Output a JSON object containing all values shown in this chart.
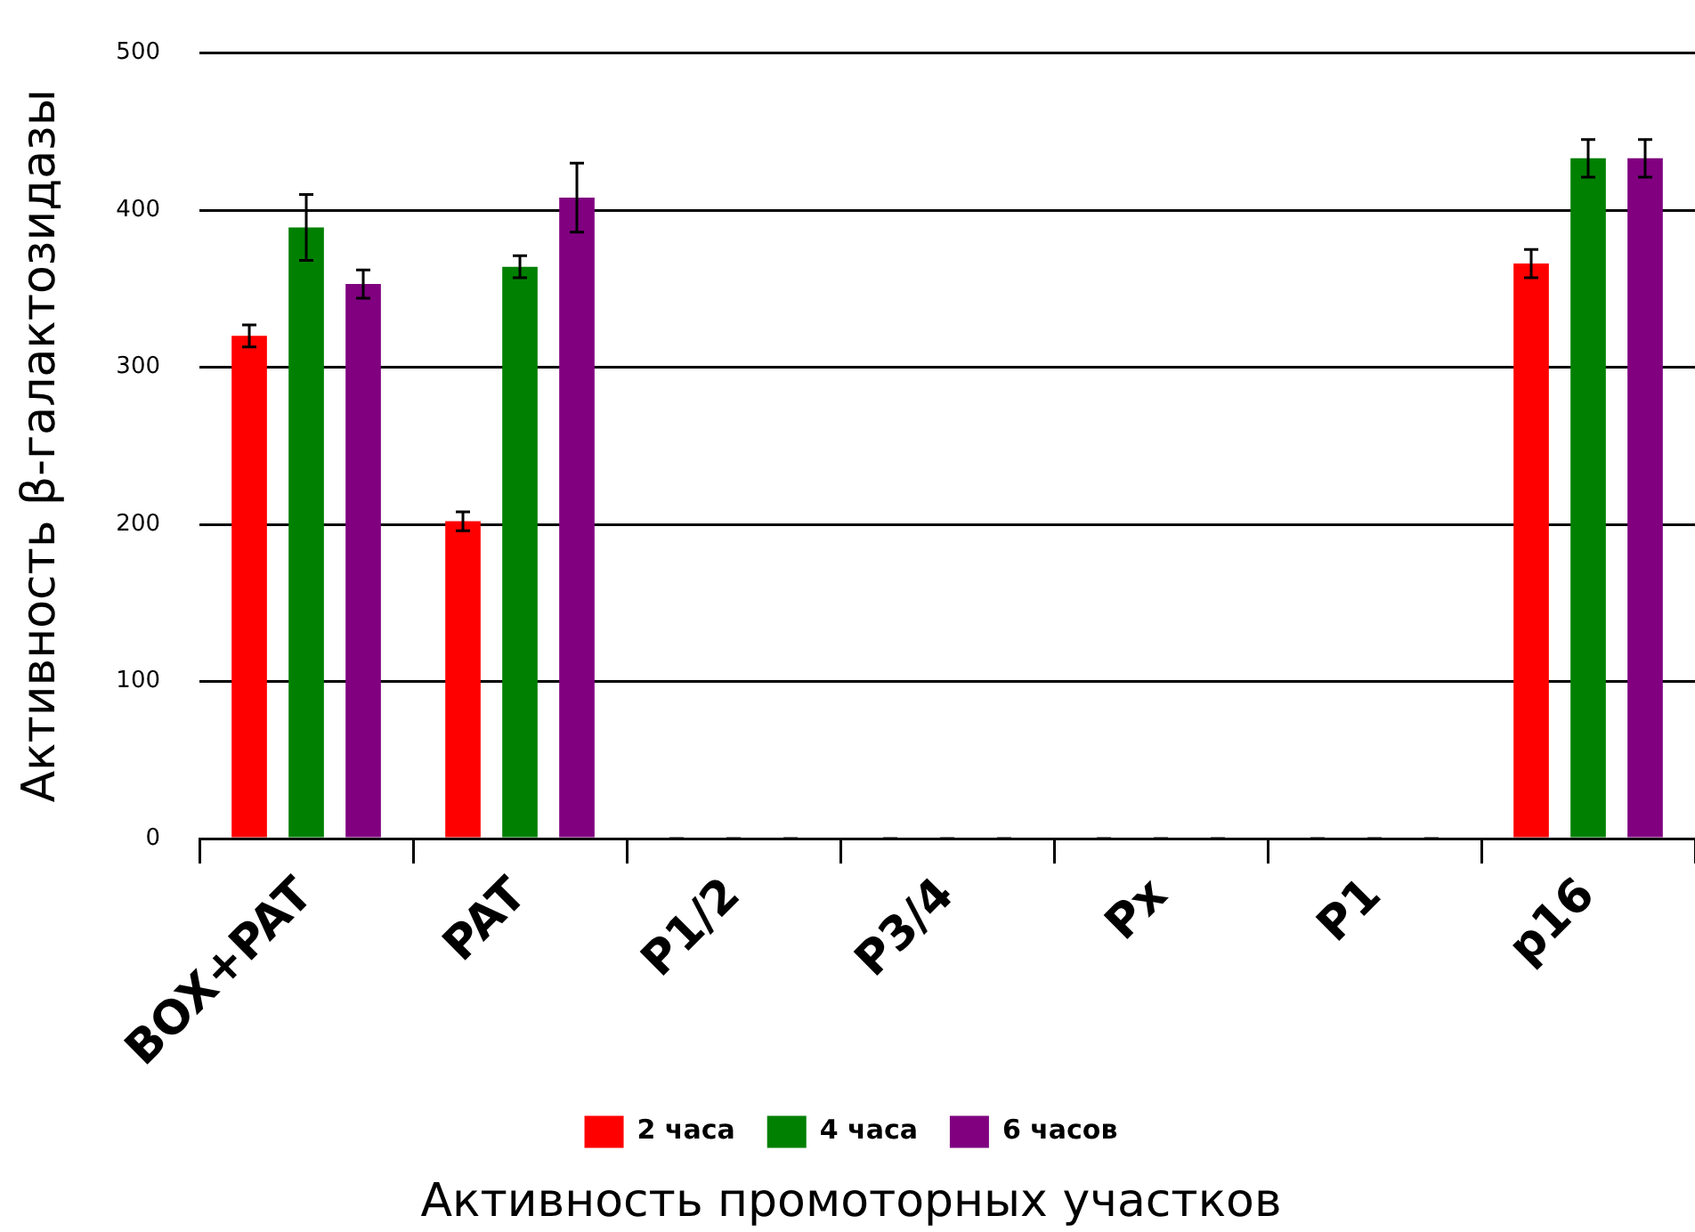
{
  "chart_data": {
    "type": "bar",
    "title": "Активность промоторных участков",
    "ylabel": "Активность β-галактозидазы",
    "categories": [
      "BOX+PAT",
      "PAT",
      "P1/2",
      "P3/4",
      "Px",
      "P1",
      "p16"
    ],
    "series": [
      {
        "name": "2 часа",
        "color": "#ff0000",
        "values": [
          320,
          202,
          0,
          0,
          0,
          0,
          366
        ],
        "errors": [
          7,
          6,
          0,
          0,
          0,
          0,
          9
        ]
      },
      {
        "name": "4 часа",
        "color": "#008000",
        "values": [
          389,
          364,
          0,
          0,
          0,
          0,
          433
        ],
        "errors": [
          21,
          7,
          0,
          0,
          0,
          0,
          12
        ]
      },
      {
        "name": "6 часов",
        "color": "#800080",
        "values": [
          353,
          408,
          0,
          0,
          0,
          0,
          433
        ],
        "errors": [
          9,
          22,
          0,
          0,
          0,
          0,
          12
        ]
      }
    ],
    "ylim": [
      0,
      500
    ],
    "yticks": [
      0,
      100,
      200,
      300,
      400,
      500
    ],
    "grid": "y",
    "legend": "bottom"
  }
}
